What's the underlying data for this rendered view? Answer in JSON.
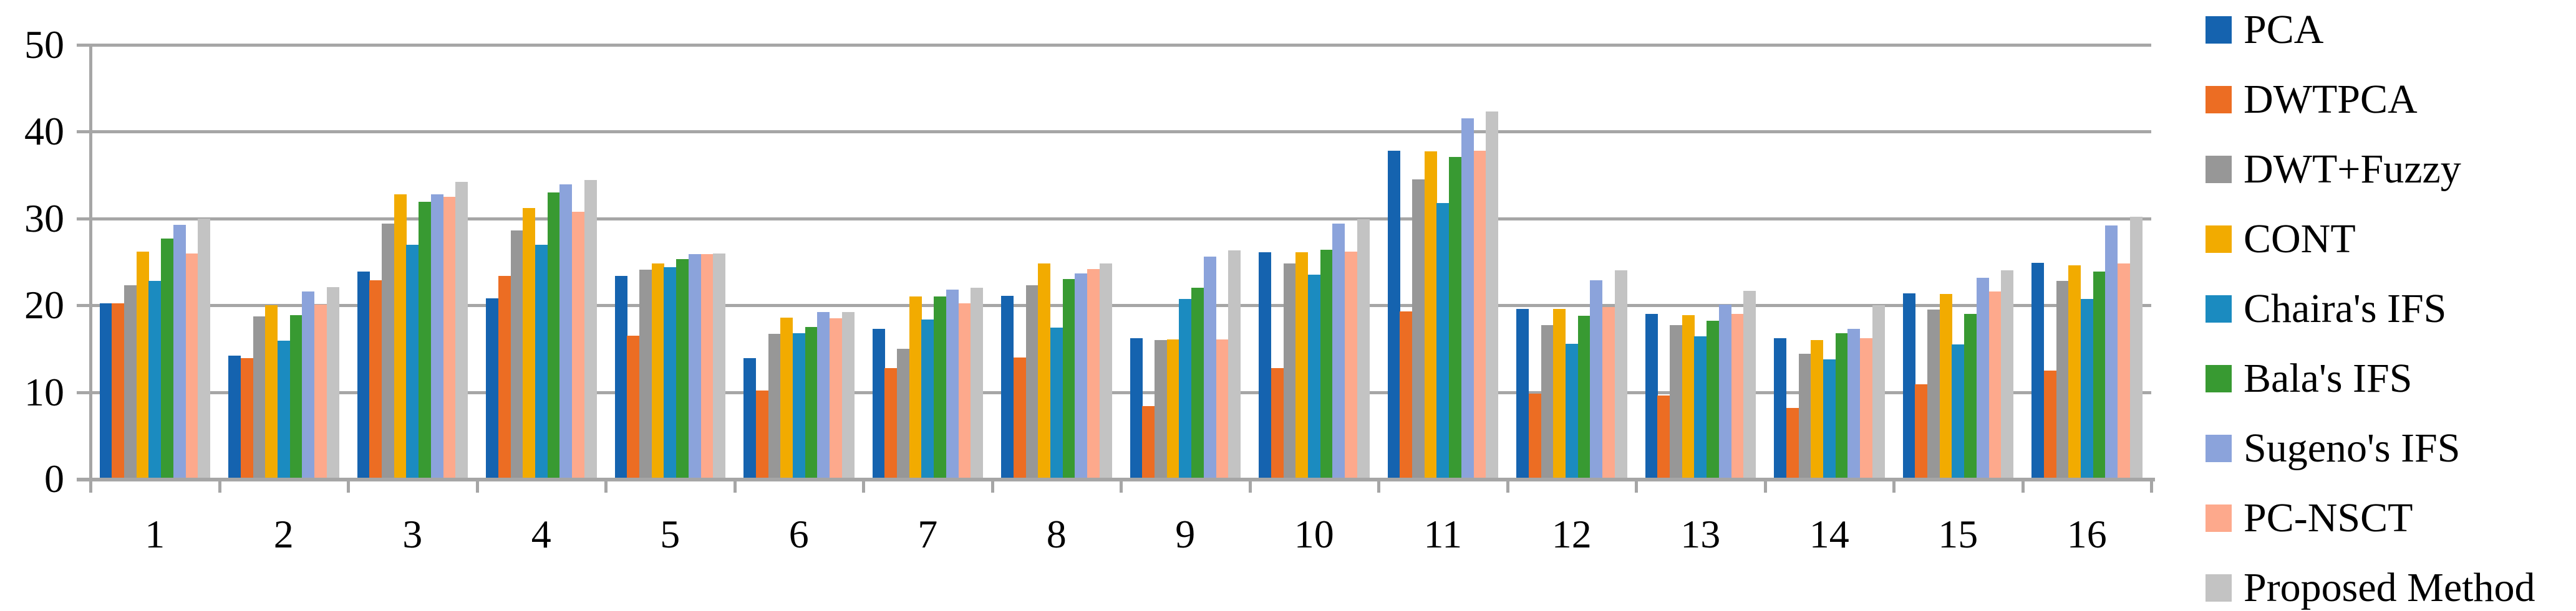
{
  "chart_data": {
    "type": "bar",
    "title": "",
    "xlabel": "",
    "ylabel": "",
    "ylim": [
      0,
      50
    ],
    "yticks": [
      0,
      10,
      20,
      30,
      40,
      50
    ],
    "grid": "horizontal",
    "legend_position": "right",
    "categories": [
      "1",
      "2",
      "3",
      "4",
      "5",
      "6",
      "7",
      "8",
      "9",
      "10",
      "11",
      "12",
      "13",
      "14",
      "15",
      "16"
    ],
    "series": [
      {
        "name": "PCA",
        "color": "#1563af",
        "values": [
          20.2,
          14.2,
          23.9,
          20.8,
          23.4,
          13.9,
          17.3,
          21.1,
          16.2,
          26.1,
          37.8,
          19.6,
          19.0,
          16.2,
          21.4,
          24.9
        ]
      },
      {
        "name": "DWTPCA",
        "color": "#ec6d23",
        "values": [
          20.2,
          13.9,
          22.9,
          23.4,
          16.5,
          10.2,
          12.8,
          14.0,
          8.4,
          12.8,
          19.3,
          9.8,
          9.6,
          8.2,
          10.9,
          12.5
        ]
      },
      {
        "name": "DWT+Fuzzy",
        "color": "#979797",
        "values": [
          22.3,
          18.7,
          29.4,
          28.6,
          24.1,
          16.7,
          15.0,
          22.3,
          16.0,
          24.8,
          34.5,
          17.7,
          17.7,
          14.4,
          19.5,
          22.8
        ]
      },
      {
        "name": "CONT",
        "color": "#f2ab00",
        "values": [
          26.2,
          20.0,
          32.8,
          31.2,
          24.8,
          18.6,
          21.0,
          24.8,
          16.1,
          26.1,
          37.7,
          19.6,
          18.9,
          16.0,
          21.3,
          24.6
        ]
      },
      {
        "name": "Chaira's IFS",
        "color": "#1b8bc0",
        "values": [
          22.8,
          15.9,
          27.0,
          27.0,
          24.4,
          16.8,
          18.4,
          17.4,
          20.7,
          23.5,
          31.8,
          15.6,
          16.4,
          13.8,
          15.5,
          20.7
        ]
      },
      {
        "name": "Bala's IFS",
        "color": "#389a32",
        "values": [
          27.7,
          18.9,
          31.9,
          33.0,
          25.3,
          17.5,
          21.0,
          23.0,
          22.0,
          26.4,
          37.1,
          18.8,
          18.2,
          16.8,
          19.0,
          23.9
        ]
      },
      {
        "name": "Sugeno's IFS",
        "color": "#8ba3db",
        "values": [
          29.3,
          21.6,
          32.8,
          33.9,
          25.9,
          19.2,
          21.8,
          23.7,
          25.6,
          29.4,
          41.5,
          22.9,
          20.1,
          17.3,
          23.2,
          29.2
        ]
      },
      {
        "name": "PC-NSCT",
        "color": "#fda98c",
        "values": [
          26.0,
          20.1,
          32.5,
          30.8,
          25.9,
          18.5,
          20.2,
          24.2,
          16.1,
          26.2,
          37.8,
          19.8,
          19.0,
          16.2,
          21.6,
          24.8
        ]
      },
      {
        "name": "Proposed Method",
        "color": "#c3c3c3",
        "values": [
          30.0,
          22.1,
          34.2,
          34.4,
          26.0,
          19.2,
          22.0,
          24.8,
          26.3,
          29.9,
          42.3,
          24.0,
          21.7,
          20.0,
          24.0,
          30.2
        ]
      }
    ],
    "axis_color": "#a6a6a6",
    "text_color": "#000000"
  }
}
